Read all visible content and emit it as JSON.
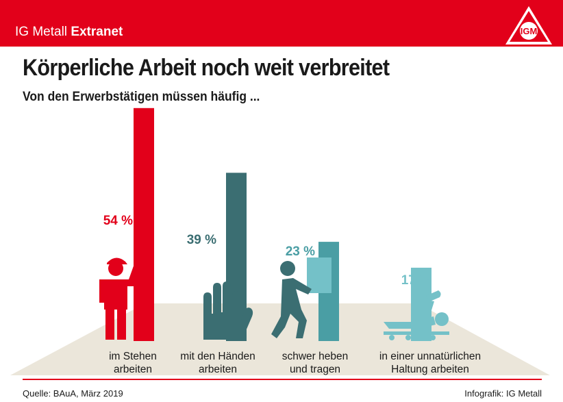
{
  "header": {
    "brand_regular": "IG Metall",
    "brand_bold": "Extranet",
    "logo_text": "IGM"
  },
  "colors": {
    "brand_red": "#e2001a",
    "teal_dark": "#3b6e72",
    "teal_mid": "#4a9ea4",
    "teal_light": "#74c1c8",
    "floor": "#ebe6da"
  },
  "chart_data": {
    "type": "bar",
    "title": "Körperliche Arbeit noch weit verbreitet",
    "subtitle": "Von den Erwerbstätigen müssen häufig ...",
    "categories": [
      "im Stehen arbeiten",
      "mit den Händen arbeiten",
      "schwer heben und tragen",
      "in einer unnatürlichen Haltung arbeiten"
    ],
    "category_lines": [
      [
        "im Stehen",
        "arbeiten"
      ],
      [
        "mit den Händen",
        "arbeiten"
      ],
      [
        "schwer heben",
        "und tragen"
      ],
      [
        "in einer unnatürlichen",
        "Haltung arbeiten"
      ]
    ],
    "values": [
      54,
      39,
      23,
      17
    ],
    "value_labels": [
      "54 %",
      "39 %",
      "23 %",
      "17 %"
    ],
    "bar_colors": [
      "#e2001a",
      "#3b6e72",
      "#4a9ea4",
      "#74c1c8"
    ],
    "icons": [
      "standing-worker-icon",
      "raised-hand-icon",
      "carrying-box-icon",
      "reclining-mechanic-icon"
    ],
    "unit": "%"
  },
  "footer": {
    "source": "Quelle: BAuA, März 2019",
    "credit": "Infografik: IG Metall"
  }
}
